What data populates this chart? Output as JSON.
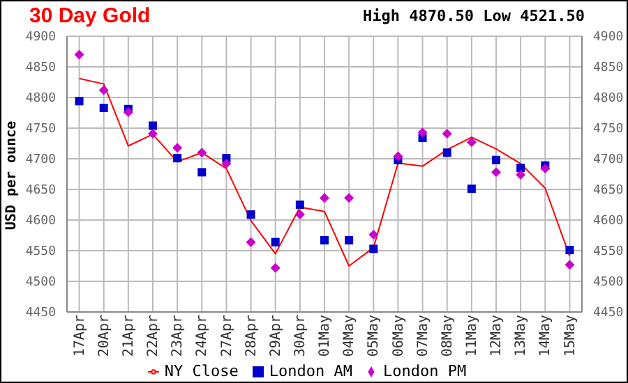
{
  "chart_data": {
    "type": "line",
    "title": "30 Day Gold",
    "subtitle": "High 4870.50 Low 4521.50",
    "ylabel": "USD per ounce",
    "categories": [
      "17Apr",
      "20Apr",
      "21Apr",
      "22Apr",
      "23Apr",
      "24Apr",
      "27Apr",
      "28Apr",
      "29Apr",
      "30Apr",
      "01May",
      "04May",
      "05May",
      "06May",
      "07May",
      "08May",
      "11May",
      "12May",
      "13May",
      "14May",
      "15May"
    ],
    "series": [
      {
        "name": "NY Close",
        "color": "#ff0000",
        "marker": "none",
        "values": [
          4831,
          4822,
          4721,
          4740,
          4695,
          4710,
          4684,
          4599,
          4545,
          4621,
          4614,
          4525,
          4555,
          4693,
          4688,
          4715,
          4735,
          4716,
          4692,
          4652,
          4541
        ]
      },
      {
        "name": "London AM",
        "type": "scatter",
        "color": "#0000cc",
        "marker": "square",
        "values": [
          4794,
          4783,
          4781,
          4754,
          4701,
          4678,
          4701,
          4609,
          4564,
          4625,
          4567,
          4567,
          4553,
          4698,
          4734,
          4710,
          4651,
          4698,
          4685,
          4689,
          4551
        ]
      },
      {
        "name": "London PM",
        "type": "scatter",
        "color": "#cc00cc",
        "marker": "diamond",
        "values": [
          4870,
          4812,
          4776,
          4741,
          4718,
          4710,
          4692,
          4564,
          4522,
          4609,
          4636,
          4636,
          4576,
          4704,
          4743,
          4741,
          4727,
          4678,
          4674,
          4684,
          4527
        ]
      }
    ],
    "ylim": [
      4450,
      4900
    ],
    "yticks": [
      4450,
      4500,
      4550,
      4600,
      4650,
      4700,
      4750,
      4800,
      4850,
      4900
    ],
    "y2lim": [
      4450,
      4900
    ],
    "y2ticks": [
      4450,
      4500,
      4550,
      4600,
      4650,
      4700,
      4750,
      4800,
      4850,
      4900
    ],
    "grid": true,
    "legend": "bottom"
  }
}
